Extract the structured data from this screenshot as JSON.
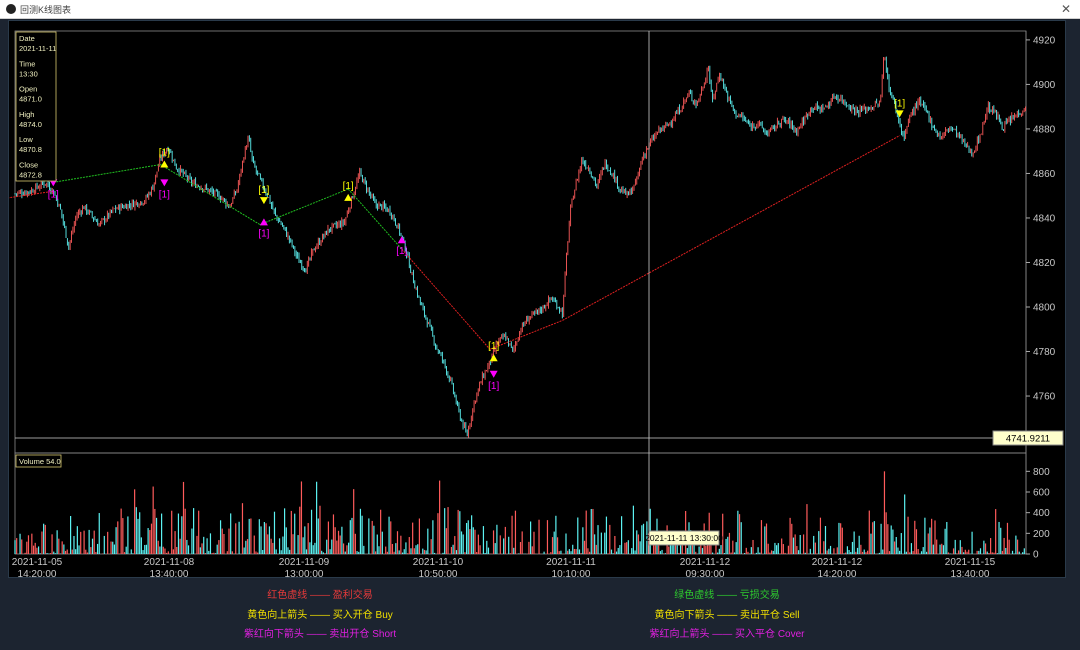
{
  "window": {
    "title": "回测K线图表",
    "close_icon": "close-icon",
    "app_icon": "app-icon"
  },
  "info_box": {
    "date_label": "Date",
    "date_value": "2021-11-11",
    "time_label": "Time",
    "time_value": "13:30",
    "open_label": "Open",
    "open_value": "4871.0",
    "high_label": "High",
    "high_value": "4874.0",
    "low_label": "Low",
    "low_value": "4870.8",
    "close_label": "Close",
    "close_value": "4872.8"
  },
  "crosshair": {
    "price_label": "4741.9211",
    "time_label": "2021-11-11 13:30:00"
  },
  "volume_label": "Volume 54.0",
  "colors": {
    "up": "#ff5b5b",
    "down": "#5cf2f2",
    "profit_line": "#e02020",
    "loss_line": "#20c020",
    "buy": "#ffff00",
    "short": "#ff00ff"
  },
  "chart_data": [
    {
      "type": "candlestick",
      "title": "",
      "ylim": [
        4738,
        4924
      ],
      "yticks": [
        4740,
        4760,
        4780,
        4800,
        4820,
        4840,
        4860,
        4880,
        4900,
        4920
      ],
      "price_path": [
        [
          0,
          4851
        ],
        [
          2,
          4852
        ],
        [
          4,
          4856
        ],
        [
          5,
          4852
        ],
        [
          6,
          4843
        ],
        [
          7,
          4827
        ],
        [
          8,
          4841
        ],
        [
          9,
          4845
        ],
        [
          11,
          4837
        ],
        [
          13,
          4844
        ],
        [
          15,
          4846
        ],
        [
          17,
          4848
        ],
        [
          18,
          4854
        ],
        [
          19,
          4867
        ],
        [
          20,
          4872
        ],
        [
          21,
          4863
        ],
        [
          23,
          4856
        ],
        [
          25,
          4853
        ],
        [
          27,
          4849
        ],
        [
          28,
          4845
        ],
        [
          29,
          4853
        ],
        [
          30,
          4870
        ],
        [
          30.5,
          4876
        ],
        [
          31,
          4865
        ],
        [
          32,
          4857
        ],
        [
          33,
          4850
        ],
        [
          34,
          4841
        ],
        [
          35,
          4836
        ],
        [
          36,
          4829
        ],
        [
          37,
          4821
        ],
        [
          38,
          4817
        ],
        [
          39,
          4826
        ],
        [
          41,
          4835
        ],
        [
          43,
          4838
        ],
        [
          44,
          4849
        ],
        [
          45,
          4860
        ],
        [
          46,
          4853
        ],
        [
          47,
          4846
        ],
        [
          48,
          4845
        ],
        [
          49,
          4843
        ],
        [
          50,
          4836
        ],
        [
          51,
          4826
        ],
        [
          52,
          4812
        ],
        [
          53,
          4801
        ],
        [
          54,
          4792
        ],
        [
          55,
          4782
        ],
        [
          56,
          4775
        ],
        [
          57,
          4765
        ],
        [
          58,
          4752
        ],
        [
          59,
          4742
        ],
        [
          60,
          4758
        ],
        [
          61,
          4768
        ],
        [
          62,
          4775
        ],
        [
          63,
          4784
        ],
        [
          64,
          4787
        ],
        [
          65,
          4780
        ],
        [
          66,
          4790
        ],
        [
          67,
          4795
        ],
        [
          68,
          4797
        ],
        [
          69,
          4800
        ],
        [
          70,
          4804
        ],
        [
          71,
          4800
        ],
        [
          71.5,
          4797
        ],
        [
          72,
          4823
        ],
        [
          72.5,
          4843
        ],
        [
          73,
          4852
        ],
        [
          74,
          4866
        ],
        [
          75,
          4862
        ],
        [
          76,
          4854
        ],
        [
          77,
          4865
        ],
        [
          78,
          4860
        ],
        [
          79,
          4853
        ],
        [
          80,
          4850
        ],
        [
          81,
          4855
        ],
        [
          82,
          4868
        ],
        [
          83,
          4874
        ],
        [
          84,
          4879
        ],
        [
          85,
          4881
        ],
        [
          86,
          4885
        ],
        [
          87,
          4890
        ],
        [
          88,
          4896
        ],
        [
          89,
          4891
        ],
        [
          90,
          4901
        ],
        [
          90.5,
          4909
        ],
        [
          91,
          4892
        ],
        [
          92,
          4905
        ],
        [
          93,
          4895
        ],
        [
          94,
          4887
        ],
        [
          95,
          4885
        ],
        [
          96,
          4881
        ],
        [
          97,
          4883
        ],
        [
          98,
          4878
        ],
        [
          99,
          4880
        ],
        [
          100,
          4884
        ],
        [
          101,
          4883
        ],
        [
          102,
          4879
        ],
        [
          103,
          4884
        ],
        [
          104,
          4890
        ],
        [
          105,
          4889
        ],
        [
          106,
          4890
        ],
        [
          107,
          4895
        ],
        [
          108,
          4893
        ],
        [
          109,
          4890
        ],
        [
          110,
          4888
        ],
        [
          111,
          4889
        ],
        [
          112,
          4890
        ],
        [
          113,
          4892
        ],
        [
          113.5,
          4916
        ],
        [
          114,
          4900
        ],
        [
          115,
          4889
        ],
        [
          116,
          4876
        ],
        [
          117,
          4887
        ],
        [
          118,
          4892
        ],
        [
          119,
          4888
        ],
        [
          120,
          4880
        ],
        [
          121,
          4876
        ],
        [
          122,
          4881
        ],
        [
          123,
          4878
        ],
        [
          124,
          4873
        ],
        [
          125,
          4869
        ],
        [
          126,
          4877
        ],
        [
          127,
          4890
        ],
        [
          128,
          4887
        ],
        [
          129,
          4881
        ],
        [
          130,
          4884
        ],
        [
          131,
          4887
        ],
        [
          132,
          4890
        ]
      ],
      "x_date_labels": [
        "2021-11-05",
        "2021-11-08",
        "2021-11-09",
        "2021-11-10",
        "2021-11-11",
        "2021-11-12",
        "2021-11-12",
        "2021-11-15"
      ],
      "x_time_labels": [
        "14:20:00",
        "13:40:00",
        "13:00:00",
        "10:50:00",
        "10:10:00",
        "09:30:00",
        "14:20:00",
        "13:40:00"
      ],
      "trade_lines": [
        {
          "kind": "loss",
          "from": [
            5,
            4856
          ],
          "to": [
            19,
            4864
          ]
        },
        {
          "kind": "loss",
          "from": [
            19,
            4864
          ],
          "to": [
            32,
            4837
          ]
        },
        {
          "kind": "loss",
          "from": [
            32,
            4837
          ],
          "to": [
            43.5,
            4853
          ]
        },
        {
          "kind": "loss",
          "from": [
            43.5,
            4853
          ],
          "to": [
            50.5,
            4826
          ]
        },
        {
          "kind": "profit",
          "from": [
            50.5,
            4826
          ],
          "to": [
            62,
            4781
          ]
        },
        {
          "kind": "profit",
          "from": [
            62,
            4781
          ],
          "to": [
            71.5,
            4794
          ]
        },
        {
          "kind": "profit",
          "from": [
            71.5,
            4794
          ],
          "to": [
            115.5,
            4877
          ]
        },
        {
          "kind": "profit",
          "from": [
            -1,
            4849
          ],
          "to": [
            5,
            4852
          ]
        }
      ],
      "signals": [
        {
          "kind": "short",
          "at": [
            5,
            4856
          ],
          "label": "[1]"
        },
        {
          "kind": "buy",
          "at": [
            19.5,
            4864
          ],
          "label": "[1]"
        },
        {
          "kind": "short",
          "at": [
            19.5,
            4856
          ],
          "label": "[1]"
        },
        {
          "kind": "sell",
          "at": [
            32.5,
            4848
          ],
          "label": "[1]"
        },
        {
          "kind": "cover",
          "at": [
            32.5,
            4838
          ],
          "label": "[1]"
        },
        {
          "kind": "buy",
          "at": [
            43.5,
            4849
          ],
          "label": "[1]"
        },
        {
          "kind": "cover",
          "at": [
            50.5,
            4830
          ],
          "label": "[1]"
        },
        {
          "kind": "buy",
          "at": [
            62.5,
            4777
          ],
          "label": "[1]"
        },
        {
          "kind": "short",
          "at": [
            62.5,
            4770
          ],
          "label": "[1]"
        },
        {
          "kind": "sell",
          "at": [
            115.5,
            4887
          ],
          "label": "[1]"
        }
      ]
    },
    {
      "type": "bar",
      "title": "",
      "ylim": [
        0,
        900
      ],
      "yticks": [
        0,
        200,
        400,
        600,
        800
      ],
      "volume_profile": [
        [
          0,
          110
        ],
        [
          8,
          180
        ],
        [
          16,
          210
        ],
        [
          24,
          240
        ],
        [
          30,
          160
        ],
        [
          38,
          240
        ],
        [
          44,
          210
        ],
        [
          50,
          190
        ],
        [
          55,
          240
        ],
        [
          62,
          190
        ],
        [
          68,
          200
        ],
        [
          72,
          220
        ],
        [
          78,
          200
        ],
        [
          84,
          230
        ],
        [
          88,
          200
        ],
        [
          92,
          210
        ],
        [
          98,
          170
        ],
        [
          104,
          160
        ],
        [
          110,
          160
        ],
        [
          113,
          230
        ],
        [
          118,
          170
        ],
        [
          124,
          150
        ],
        [
          132,
          140
        ]
      ]
    }
  ],
  "legend": {
    "profit_line": "红色虚线 ——  盈利交易",
    "loss_line": "绿色虚线 ——  亏损交易",
    "buy": "黄色向上箭头 —— 买入开仓 Buy",
    "sell": "黄色向下箭头 —— 卖出平仓 Sell",
    "short": "紫红向下箭头 —— 卖出开仓 Short",
    "cover": "紫红向上箭头 —— 买入平仓 Cover"
  }
}
